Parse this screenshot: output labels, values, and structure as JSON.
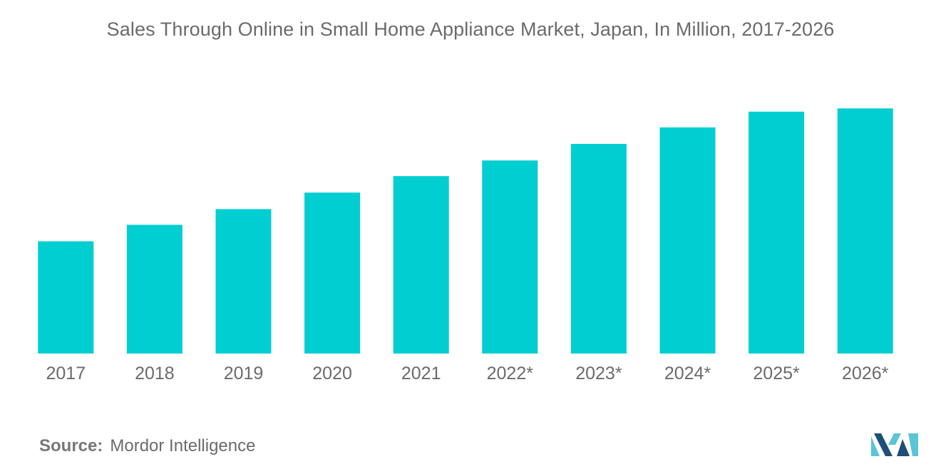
{
  "title": "Sales Through Online in Small Home Appliance Market, Japan, In Million, 2017-2026",
  "source": {
    "label": "Source:",
    "value": "Mordor Intelligence"
  },
  "logo_icon": "mordor-intelligence-logo",
  "colors": {
    "bar": "#00CED1",
    "text": "#6b6b6b",
    "logo_dark": "#1f4e79",
    "logo_light": "#5bc4d6"
  },
  "chart_data": {
    "type": "bar",
    "title": "Sales Through Online in Small Home Appliance Market, Japan, In Million, 2017-2026",
    "xlabel": "",
    "ylabel": "",
    "categories": [
      "2017",
      "2018",
      "2019",
      "2020",
      "2021",
      "2022*",
      "2023*",
      "2024*",
      "2025*",
      "2026*"
    ],
    "values": [
      136,
      156,
      175,
      195,
      215,
      234,
      254,
      274,
      293,
      297
    ],
    "ylim": [
      0,
      380
    ],
    "grid": false,
    "legend": "none"
  }
}
